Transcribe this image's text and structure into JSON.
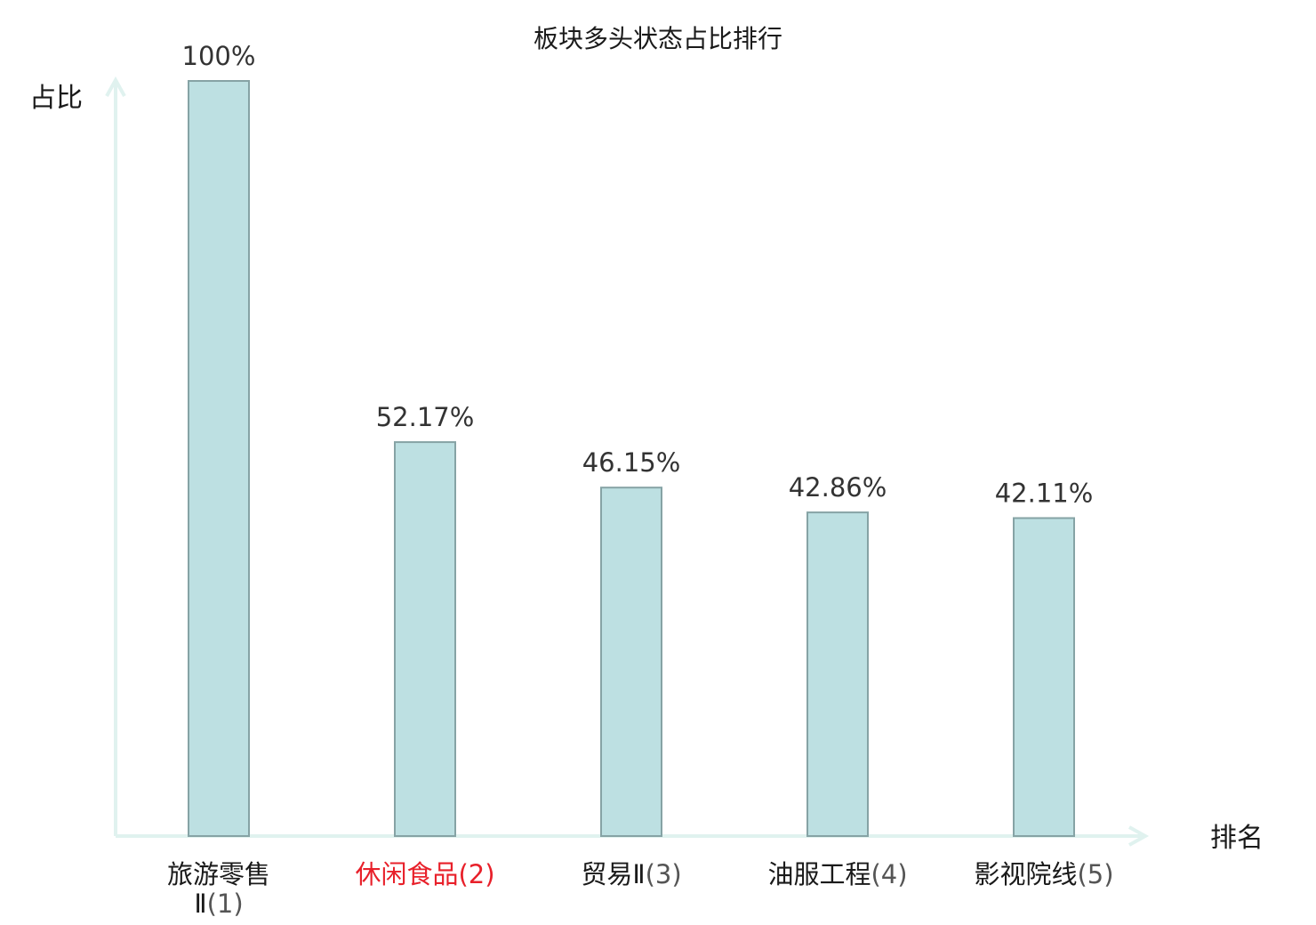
{
  "chart_data": {
    "type": "bar",
    "title": "板块多头状态占比排行",
    "ylabel": "占比",
    "xlabel": "排名",
    "ylim": [
      0,
      100
    ],
    "categories": [
      {
        "name": "旅游零售",
        "name_cont": "Ⅱ",
        "rank": "(1)",
        "highlight": false
      },
      {
        "name": "休闲食品",
        "name_cont": "",
        "rank": "(2)",
        "highlight": true
      },
      {
        "name": "贸易Ⅱ",
        "name_cont": "",
        "rank": "(3)",
        "highlight": false
      },
      {
        "name": "油服工程",
        "name_cont": "",
        "rank": "(4)",
        "highlight": false
      },
      {
        "name": "影视院线",
        "name_cont": "",
        "rank": "(5)",
        "highlight": false
      }
    ],
    "values": [
      100,
      52.17,
      46.15,
      42.86,
      42.11
    ],
    "value_labels": [
      "100%",
      "52.17%",
      "46.15%",
      "42.86%",
      "42.11%"
    ],
    "grid": false,
    "legend": "none"
  },
  "colors": {
    "bar_fill": "#bde0e2",
    "bar_stroke": "#86a3a5",
    "axis": "#e0f2ef",
    "highlight_text": "#e8202a",
    "normal_text": "#1a1a1a",
    "rank_text": "#555555"
  }
}
